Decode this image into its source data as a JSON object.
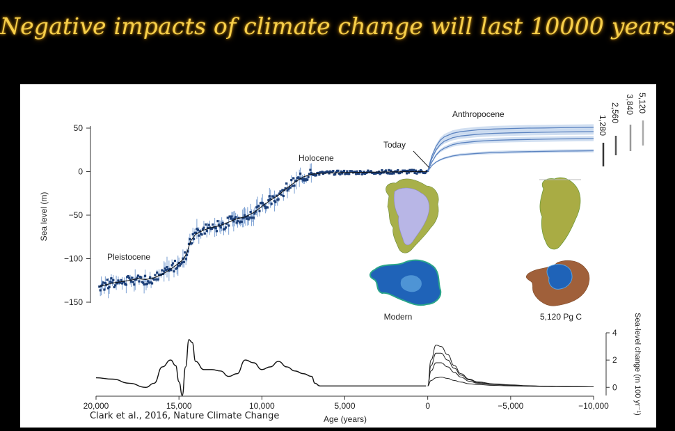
{
  "slide": {
    "title": "Negative impacts of climate change will last 10000 years",
    "citation": "Clark et al., 2016, Nature Climate Change"
  },
  "colors": {
    "background": "#000000",
    "title": "#f7cf4a",
    "data_points": "#1c3f78",
    "error_bars": "#7a9fd2",
    "projection_line": "#5b83c0",
    "projection_band": "#c9d9ee",
    "greenland_ice": "#b8b6e6",
    "antarctica_ice": "#1f63b8",
    "land_green": "#a8b04a",
    "land_brown": "#a0603a"
  },
  "chart_data": [
    {
      "type": "line",
      "title": "",
      "xlabel": "",
      "ylabel": "Sea level (m)",
      "xlim": [
        20000,
        -10000
      ],
      "ylim": [
        -150,
        50
      ],
      "yticks": [
        50,
        0,
        -50,
        -100,
        -150
      ],
      "grid": false,
      "reconstruction": {
        "x": [
          19800,
          19000,
          18000,
          17500,
          17000,
          16500,
          16000,
          15500,
          15000,
          14700,
          14500,
          14300,
          14000,
          13500,
          13000,
          12500,
          12000,
          11500,
          11000,
          10500,
          10000,
          9500,
          9000,
          8500,
          8000,
          7500,
          7000,
          6500,
          6000,
          5000,
          4000,
          3000,
          2000,
          1000,
          0
        ],
        "y": [
          -132,
          -128,
          -125,
          -123,
          -124,
          -122,
          -118,
          -112,
          -105,
          -100,
          -92,
          -80,
          -72,
          -67,
          -64,
          -62,
          -58,
          -54,
          -52,
          -47,
          -40,
          -33,
          -27,
          -19,
          -12,
          -6,
          -3,
          -2,
          -1.5,
          -1,
          -0.8,
          -0.5,
          -0.3,
          -0.1,
          0
        ]
      },
      "projection": {
        "x": [
          0,
          -100,
          -250,
          -500,
          -750,
          -1000,
          -1500,
          -2000,
          -3000,
          -4000,
          -5000,
          -6000,
          -7000,
          -8000,
          -9000,
          -10000
        ],
        "series": [
          {
            "name": "5,120",
            "y": [
              0,
              8,
              18,
              29,
              36,
              40,
              44,
              46,
              48,
              49,
              49.5,
              50,
              50.2,
              50.5,
              50.7,
              51
            ]
          },
          {
            "name": "3,840",
            "y": [
              0,
              7,
              15,
              25,
              31,
              35,
              39,
              41,
              43,
              44,
              44.6,
              45,
              45.3,
              45.6,
              45.8,
              46
            ]
          },
          {
            "name": "2,560",
            "y": [
              0,
              5,
              11,
              19,
              24,
              27,
              31,
              33,
              35,
              36,
              36.6,
              37,
              37.3,
              37.6,
              37.8,
              38
            ]
          },
          {
            "name": "1,280",
            "y": [
              0,
              3,
              7,
              11,
              13.5,
              15.5,
              18,
              19.5,
              21,
              22,
              22.6,
              23,
              23.3,
              23.6,
              23.8,
              24
            ]
          }
        ]
      },
      "legend_entries": [
        "5,120",
        "3,840",
        "2,560",
        "1,280"
      ],
      "annotations": [
        "Anthropocene",
        "Today",
        "Holocene",
        "Pleistocene"
      ],
      "inset_labels": [
        "Modern",
        "5,120 Pg C"
      ]
    },
    {
      "type": "line",
      "title": "",
      "xlabel": "Age (years)",
      "ylabel": "Sea-level change (m 100 yr⁻¹)",
      "xlim": [
        20000,
        -10000
      ],
      "ylim": [
        -0.6,
        4
      ],
      "xticks": [
        20000,
        15000,
        10000,
        5000,
        0,
        -5000,
        -10000
      ],
      "xtick_labels": [
        "20,000",
        "15,000",
        "10,000",
        "5,000",
        "0",
        "−5,000",
        "−10,000"
      ],
      "yticks": [
        0,
        2,
        4
      ],
      "grid": false,
      "reconstruction": {
        "x": [
          20000,
          19000,
          18000,
          17000,
          16500,
          16000,
          15500,
          15200,
          15000,
          14800,
          14600,
          14400,
          14200,
          14000,
          13500,
          13000,
          12500,
          12000,
          11500,
          11000,
          10500,
          10000,
          9500,
          9000,
          8500,
          8000,
          7500,
          7000,
          6800,
          6500,
          6000,
          5000,
          4000,
          3000,
          2000,
          1000,
          500,
          100
        ],
        "y": [
          0.7,
          0.6,
          0.3,
          0,
          0.3,
          1.5,
          2.0,
          1.6,
          0.4,
          -0.6,
          1.5,
          3.5,
          3.3,
          1.9,
          1.3,
          1.3,
          1.2,
          0.8,
          1.0,
          2.0,
          1.8,
          1.3,
          1.5,
          1.9,
          1.5,
          1.2,
          1.0,
          0.8,
          0.3,
          0.1,
          0.1,
          0.1,
          0.1,
          0.1,
          0.1,
          0.1,
          0.1,
          0.1
        ]
      },
      "projection": {
        "x": [
          0,
          -200,
          -500,
          -800,
          -1200,
          -1600,
          -2000,
          -2500,
          -3000,
          -4000,
          -5000,
          -6000,
          -7000,
          -8000,
          -9000,
          -10000
        ],
        "series": [
          {
            "name": "5,120",
            "y": [
              0.1,
              2.0,
              3.1,
              3.0,
              2.4,
              1.6,
              1.0,
              0.6,
              0.4,
              0.25,
              0.18,
              0.12,
              0.08,
              0.06,
              0.05,
              0.04
            ]
          },
          {
            "name": "3,840",
            "y": [
              0.1,
              1.6,
              2.5,
              2.5,
              2.0,
              1.4,
              0.9,
              0.55,
              0.35,
              0.22,
              0.16,
              0.11,
              0.08,
              0.06,
              0.05,
              0.04
            ]
          },
          {
            "name": "2,560",
            "y": [
              0.1,
              1.2,
              1.8,
              1.8,
              1.5,
              1.1,
              0.75,
              0.45,
              0.3,
              0.2,
              0.14,
              0.1,
              0.07,
              0.05,
              0.04,
              0.04
            ]
          },
          {
            "name": "1,280",
            "y": [
              0.1,
              0.5,
              0.7,
              0.75,
              0.65,
              0.5,
              0.38,
              0.26,
              0.2,
              0.14,
              0.1,
              0.08,
              0.06,
              0.05,
              0.04,
              0.04
            ]
          }
        ]
      }
    }
  ]
}
